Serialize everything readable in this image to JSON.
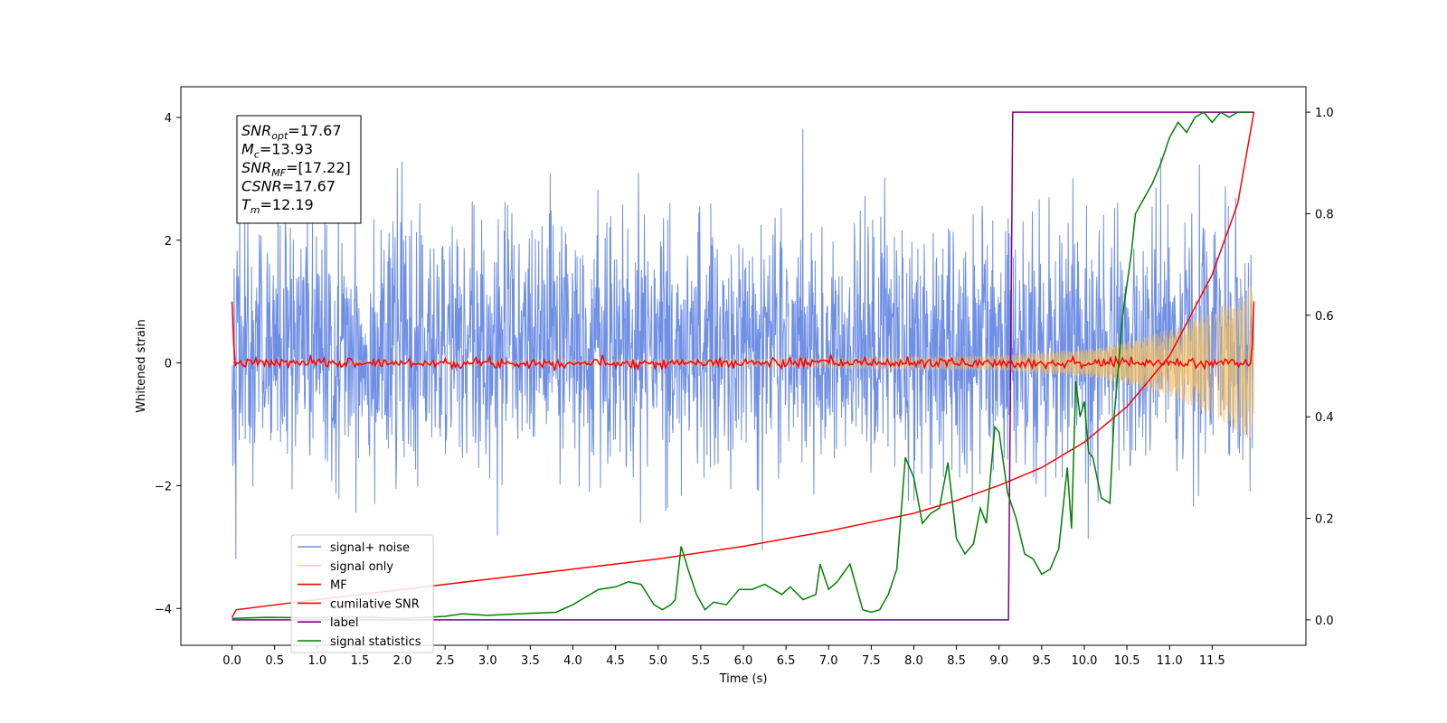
{
  "chart_data": {
    "type": "line",
    "xlabel": "Time (s)",
    "ylabel_left": "Whitened strain",
    "xlim": [
      -0.6,
      12.6
    ],
    "ylim_left": [
      -4.6,
      4.5
    ],
    "ylim_right": [
      -0.05,
      1.05
    ],
    "x_ticks": [
      0.0,
      0.5,
      1.0,
      1.5,
      2.0,
      2.5,
      3.0,
      3.5,
      4.0,
      4.5,
      5.0,
      5.5,
      6.0,
      6.5,
      7.0,
      7.5,
      8.0,
      8.5,
      9.0,
      9.5,
      10.0,
      10.5,
      11.0,
      11.5
    ],
    "x_tick_labels": [
      "0.0",
      "0.5",
      "1.0",
      "1.5",
      "2.0",
      "2.5",
      "3.0",
      "3.5",
      "4.0",
      "4.5",
      "5.0",
      "5.5",
      "6.0",
      "6.5",
      "7.0",
      "7.5",
      "8.0",
      "8.5",
      "9.0",
      "9.5",
      "10.0",
      "10.5",
      "11.0",
      "11.5"
    ],
    "y_ticks_left": [
      -4,
      -2,
      0,
      2,
      4
    ],
    "y_tick_labels_left": [
      "−4",
      "−2",
      "0",
      "2",
      "4"
    ],
    "y_ticks_right": [
      0.0,
      0.2,
      0.4,
      0.6,
      0.8,
      1.0
    ],
    "y_tick_labels_right": [
      "0.0",
      "0.2",
      "0.4",
      "0.6",
      "0.8",
      "1.0"
    ],
    "grid": false,
    "legend_placement": "lower-left",
    "annotation": {
      "lines": [
        {
          "var": "SNR",
          "sub": "opt",
          "value": "=17.67"
        },
        {
          "var": "M",
          "sub": "c",
          "value": "=13.93"
        },
        {
          "var": "SNR",
          "sub": "MF",
          "value": "=[17.22]"
        },
        {
          "var": "CSNR",
          "sub": "",
          "value": "=17.67"
        },
        {
          "var": "T",
          "sub": "m",
          "value": "=12.19"
        }
      ]
    },
    "series": [
      {
        "name": "signal+ noise",
        "axis": "left",
        "color": "#6f8fe6",
        "kind": "noise",
        "t_start": 0.0,
        "t_end": 11.99,
        "noise_std": 1.05,
        "typical_range": [
          -3.0,
          3.6
        ]
      },
      {
        "name": "signal only",
        "axis": "left",
        "color": "#f5c060",
        "kind": "chirp",
        "t_start": 0.0,
        "t_end": 11.99,
        "amplitude_envelope": [
          [
            0.0,
            0.03
          ],
          [
            6.0,
            0.06
          ],
          [
            9.0,
            0.12
          ],
          [
            10.0,
            0.22
          ],
          [
            10.5,
            0.35
          ],
          [
            11.0,
            0.55
          ],
          [
            11.5,
            0.85
          ],
          [
            11.99,
            1.3
          ]
        ]
      },
      {
        "name": "MF",
        "axis": "left",
        "color": "#ff0000",
        "kind": "near-zero-noise",
        "t_start": 0.0,
        "t_end": 11.99,
        "noise_std": 0.04,
        "edge_values": {
          "start": 1.0,
          "end": 1.0
        }
      },
      {
        "name": "cumilative SNR",
        "axis": "right",
        "color": "#ff0000",
        "kind": "curve",
        "x": [
          0.0,
          0.05,
          1.0,
          2.0,
          3.0,
          4.0,
          5.0,
          6.0,
          7.0,
          8.0,
          8.5,
          9.0,
          9.5,
          10.0,
          10.5,
          11.0,
          11.5,
          11.8,
          11.99
        ],
        "values": [
          0.005,
          0.02,
          0.04,
          0.06,
          0.08,
          0.1,
          0.12,
          0.145,
          0.175,
          0.21,
          0.235,
          0.265,
          0.3,
          0.35,
          0.42,
          0.52,
          0.68,
          0.82,
          1.0
        ]
      },
      {
        "name": "label",
        "axis": "right",
        "color": "#800080",
        "kind": "step",
        "x": [
          0.0,
          9.11,
          9.16,
          11.99
        ],
        "values": [
          0.0,
          0.0,
          1.0,
          1.0
        ]
      },
      {
        "name": "signal statistics",
        "axis": "right",
        "color": "#008000",
        "kind": "polyline",
        "x": [
          0.0,
          0.4,
          1.0,
          1.5,
          2.0,
          2.5,
          2.7,
          3.0,
          3.5,
          3.8,
          4.0,
          4.15,
          4.3,
          4.5,
          4.65,
          4.8,
          4.95,
          5.05,
          5.15,
          5.2,
          5.27,
          5.35,
          5.45,
          5.55,
          5.65,
          5.8,
          5.95,
          6.1,
          6.25,
          6.35,
          6.45,
          6.55,
          6.7,
          6.85,
          6.9,
          7.0,
          7.1,
          7.25,
          7.4,
          7.5,
          7.6,
          7.7,
          7.8,
          7.9,
          8.0,
          8.1,
          8.2,
          8.3,
          8.4,
          8.5,
          8.6,
          8.7,
          8.78,
          8.85,
          8.95,
          9.0,
          9.1,
          9.2,
          9.3,
          9.4,
          9.5,
          9.6,
          9.7,
          9.8,
          9.85,
          9.9,
          9.95,
          10.0,
          10.05,
          10.1,
          10.2,
          10.3,
          10.35,
          10.45,
          10.55,
          10.6,
          10.7,
          10.8,
          10.9,
          11.0,
          11.1,
          11.2,
          11.3,
          11.4,
          11.5,
          11.6,
          11.7,
          11.8,
          11.9,
          11.95
        ],
        "values": [
          0.003,
          0.005,
          0.004,
          0.006,
          0.003,
          0.007,
          0.012,
          0.009,
          0.013,
          0.015,
          0.03,
          0.045,
          0.06,
          0.065,
          0.075,
          0.07,
          0.03,
          0.02,
          0.03,
          0.04,
          0.145,
          0.1,
          0.05,
          0.02,
          0.035,
          0.03,
          0.06,
          0.06,
          0.07,
          0.06,
          0.05,
          0.065,
          0.04,
          0.05,
          0.11,
          0.06,
          0.075,
          0.11,
          0.02,
          0.015,
          0.02,
          0.05,
          0.1,
          0.32,
          0.28,
          0.19,
          0.21,
          0.22,
          0.31,
          0.16,
          0.13,
          0.15,
          0.22,
          0.19,
          0.38,
          0.37,
          0.25,
          0.2,
          0.13,
          0.12,
          0.09,
          0.1,
          0.14,
          0.3,
          0.18,
          0.47,
          0.4,
          0.43,
          0.33,
          0.32,
          0.24,
          0.23,
          0.4,
          0.6,
          0.72,
          0.8,
          0.83,
          0.86,
          0.9,
          0.95,
          0.98,
          0.96,
          0.99,
          1.0,
          0.98,
          1.0,
          0.99,
          1.0,
          1.0,
          1.0
        ]
      }
    ]
  }
}
